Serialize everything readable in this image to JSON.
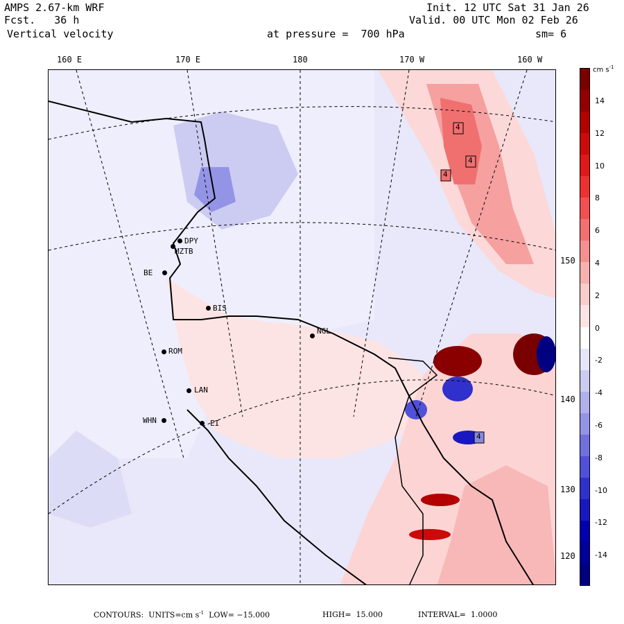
{
  "header": {
    "model": "AMPS 2.67-km WRF",
    "fcst": "Fcst.   36 h",
    "field": "Vertical velocity",
    "init": "Init. 12 UTC Sat 31 Jan 26",
    "valid": "Valid. 00 UTC Mon 02 Feb 26",
    "level": "at pressure =  700 hPa",
    "smooth": "sm= 6"
  },
  "lon_labels": [
    "160 E",
    "170 E",
    "180",
    "170 W",
    "160 W"
  ],
  "lat_labels": [
    "150 W",
    "140 W",
    "130 W",
    "120 W"
  ],
  "colorbar": {
    "units_label": "cm s",
    "units_sup": "-1",
    "labels": [
      "14",
      "12",
      "10",
      "8",
      "6",
      "4",
      "2",
      "0",
      "-2",
      "-4",
      "-6",
      "-8",
      "-10",
      "-12",
      "-14"
    ],
    "colors": [
      "#7a0000",
      "#940000",
      "#b40000",
      "#cc0a0a",
      "#e01818",
      "#ee3030",
      "#f25050",
      "#f47070",
      "#f69090",
      "#f8b0b0",
      "#facccc",
      "#fde4e4",
      "#ffffff",
      "#e6e6fa",
      "#ccccf2",
      "#b0b0ec",
      "#9494e6",
      "#7070de",
      "#5050d8",
      "#3030cc",
      "#1818c0",
      "#0000b0",
      "#00009a",
      "#000080"
    ]
  },
  "stations": [
    "DPY",
    "MZTB",
    "BE",
    "BIS",
    "NGL",
    "ROM",
    "LAN",
    "WHN",
    "EI"
  ],
  "contour_labels": [
    "4",
    "4",
    "4",
    "4"
  ],
  "footer": {
    "contours": "CONTOURS:  UNITS=cm s",
    "contours_sup": "-1",
    "low": "  LOW= −15.000",
    "high": "HIGH=  15.000",
    "interval": "INTERVAL=  1.0000"
  }
}
